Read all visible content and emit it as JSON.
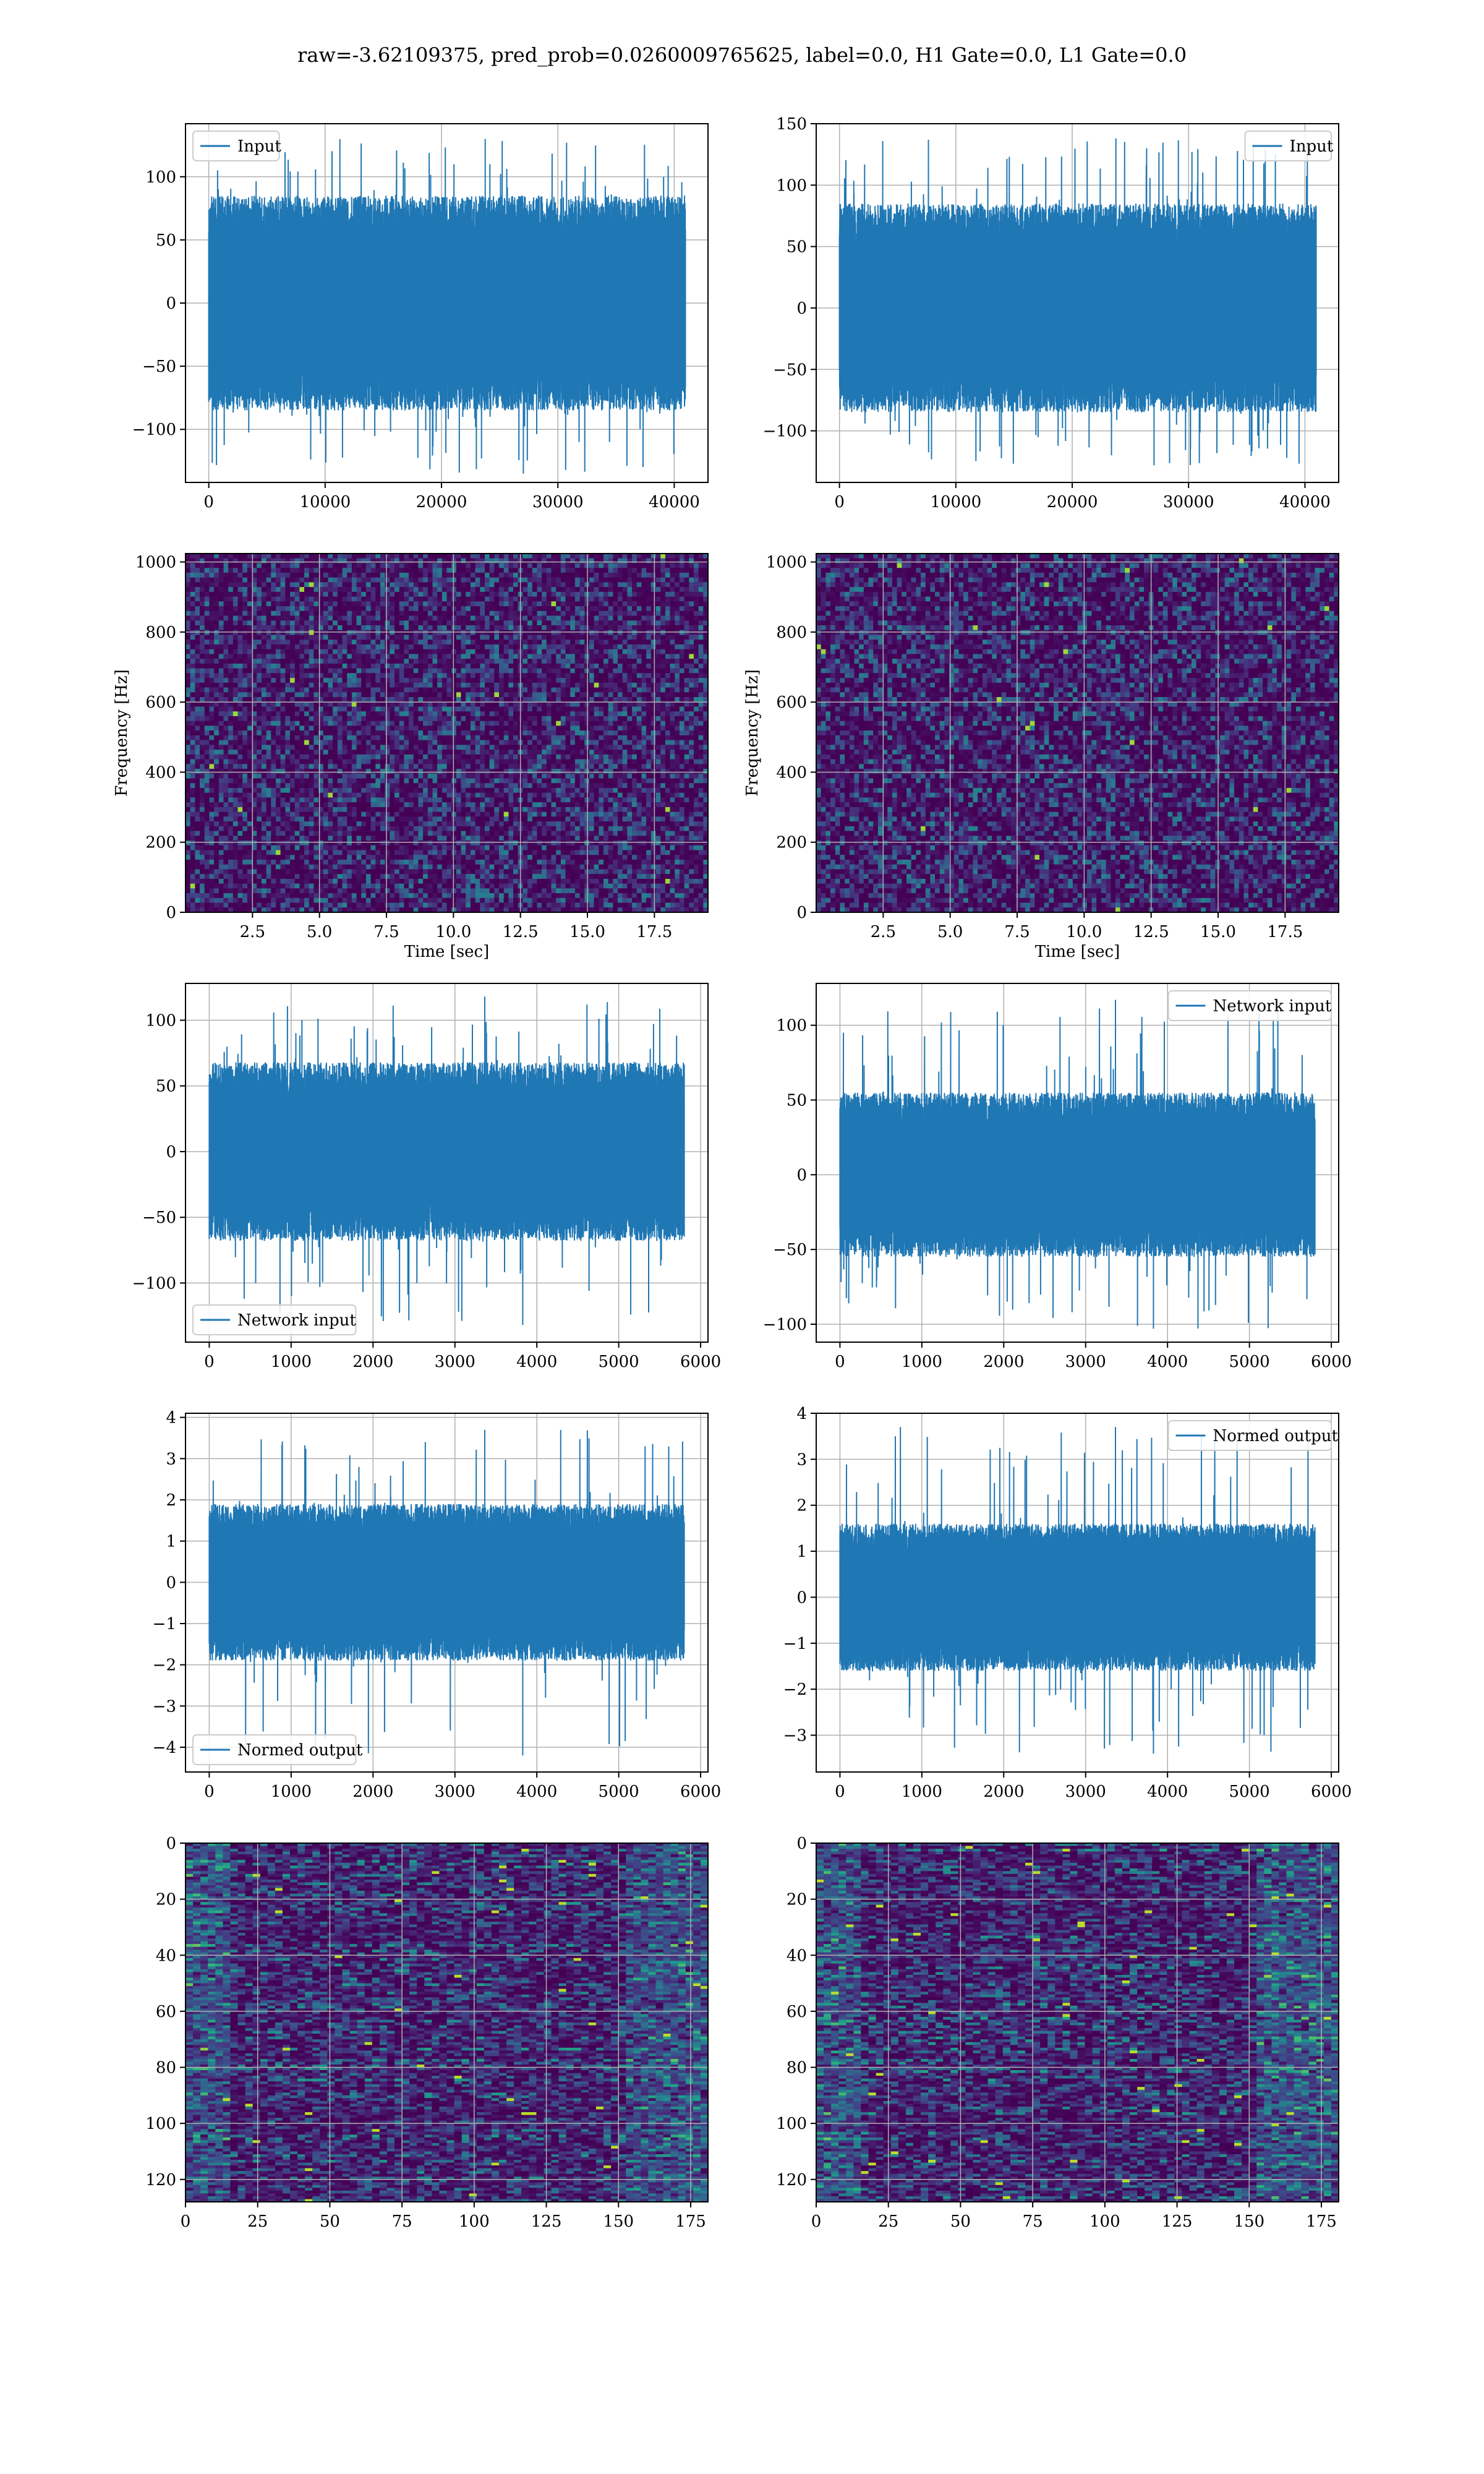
{
  "figure": {
    "title": "raw=-3.62109375, pred_prob=0.0260009765625, label=0.0, H1 Gate=0.0, L1 Gate=0.0"
  },
  "colors": {
    "line": "#1f77b4",
    "grid": "#b0b0b0",
    "viridis_low": "#440154",
    "viridis_high": "#fde725"
  },
  "chart_data": [
    {
      "id": "h1-input",
      "type": "line",
      "title": "",
      "xlabel": "",
      "ylabel": "",
      "xlim": [
        -2000,
        42900
      ],
      "ylim": [
        -142,
        142
      ],
      "xticks": [
        0,
        10000,
        20000,
        30000,
        40000
      ],
      "yticks": [
        -100,
        -50,
        0,
        50,
        100
      ],
      "grid": true,
      "legend": "upper left",
      "series": [
        {
          "name": "Input",
          "n": 40960,
          "band": [
            -85,
            85
          ],
          "extremes": [
            -135,
            130
          ]
        }
      ]
    },
    {
      "id": "l1-input",
      "type": "line",
      "title": "",
      "xlabel": "",
      "ylabel": "",
      "xlim": [
        -2000,
        42900
      ],
      "ylim": [
        -142,
        150
      ],
      "xticks": [
        0,
        10000,
        20000,
        30000,
        40000
      ],
      "yticks": [
        -100,
        -50,
        0,
        50,
        100,
        150
      ],
      "grid": true,
      "legend": "upper right",
      "series": [
        {
          "name": "Input",
          "n": 40960,
          "band": [
            -85,
            85
          ],
          "extremes": [
            -128,
            138
          ]
        }
      ]
    },
    {
      "id": "h1-spectrogram",
      "type": "heatmap",
      "title": "",
      "xlabel": "Time [sec]",
      "ylabel": "Frequency [Hz]",
      "xlim": [
        0,
        19.5
      ],
      "ylim": [
        0,
        1024
      ],
      "xticks": [
        2.5,
        5.0,
        7.5,
        10.0,
        12.5,
        15.0,
        17.5
      ],
      "yticks": [
        0,
        200,
        400,
        600,
        800,
        1000
      ],
      "grid": true,
      "colormap": "viridis"
    },
    {
      "id": "l1-spectrogram",
      "type": "heatmap",
      "title": "",
      "xlabel": "Time [sec]",
      "ylabel": "Frequency [Hz]",
      "xlim": [
        0,
        19.5
      ],
      "ylim": [
        0,
        1024
      ],
      "xticks": [
        2.5,
        5.0,
        7.5,
        10.0,
        12.5,
        15.0,
        17.5
      ],
      "yticks": [
        0,
        200,
        400,
        600,
        800,
        1000
      ],
      "grid": true,
      "colormap": "viridis"
    },
    {
      "id": "h1-network-input",
      "type": "line",
      "title": "",
      "xlabel": "",
      "ylabel": "",
      "xlim": [
        -290,
        6090
      ],
      "ylim": [
        -145,
        128
      ],
      "xticks": [
        0,
        1000,
        2000,
        3000,
        4000,
        5000,
        6000
      ],
      "yticks": [
        -100,
        -50,
        0,
        50,
        100
      ],
      "grid": true,
      "legend": "lower left",
      "series": [
        {
          "name": "Network input",
          "n": 5800,
          "band": [
            -68,
            68
          ],
          "extremes": [
            -132,
            118
          ]
        }
      ]
    },
    {
      "id": "l1-network-input",
      "type": "line",
      "title": "",
      "xlabel": "",
      "ylabel": "",
      "xlim": [
        -290,
        6090
      ],
      "ylim": [
        -112,
        128
      ],
      "xticks": [
        0,
        1000,
        2000,
        3000,
        4000,
        5000,
        6000
      ],
      "yticks": [
        -100,
        -50,
        0,
        50,
        100
      ],
      "grid": true,
      "legend": "upper right",
      "series": [
        {
          "name": "Network input",
          "n": 5800,
          "band": [
            -55,
            55
          ],
          "extremes": [
            -103,
            117
          ]
        }
      ]
    },
    {
      "id": "h1-normed-output",
      "type": "line",
      "title": "",
      "xlabel": "",
      "ylabel": "",
      "xlim": [
        -290,
        6090
      ],
      "ylim": [
        -4.6,
        4.1
      ],
      "xticks": [
        0,
        1000,
        2000,
        3000,
        4000,
        5000,
        6000
      ],
      "yticks": [
        -4,
        -3,
        -2,
        -1,
        0,
        1,
        2,
        3,
        4
      ],
      "grid": true,
      "legend": "lower left",
      "series": [
        {
          "name": "Normed output",
          "n": 5800,
          "band": [
            -1.9,
            1.9
          ],
          "extremes": [
            -4.2,
            3.7
          ]
        }
      ]
    },
    {
      "id": "l1-normed-output",
      "type": "line",
      "title": "",
      "xlabel": "",
      "ylabel": "",
      "xlim": [
        -290,
        6090
      ],
      "ylim": [
        -3.8,
        4.0
      ],
      "xticks": [
        0,
        1000,
        2000,
        3000,
        4000,
        5000,
        6000
      ],
      "yticks": [
        -3,
        -2,
        -1,
        0,
        1,
        2,
        3,
        4
      ],
      "grid": true,
      "legend": "upper right",
      "series": [
        {
          "name": "Normed output",
          "n": 5800,
          "band": [
            -1.6,
            1.6
          ],
          "extremes": [
            -3.4,
            3.7
          ]
        }
      ]
    },
    {
      "id": "h1-feature-map",
      "type": "heatmap",
      "title": "",
      "xlabel": "",
      "ylabel": "",
      "xlim": [
        0,
        181
      ],
      "ylim": [
        128,
        0
      ],
      "xticks": [
        0,
        25,
        50,
        75,
        100,
        125,
        150,
        175
      ],
      "yticks": [
        0,
        20,
        40,
        60,
        80,
        100,
        120
      ],
      "grid": true,
      "colormap": "viridis"
    },
    {
      "id": "l1-feature-map",
      "type": "heatmap",
      "title": "",
      "xlabel": "",
      "ylabel": "",
      "xlim": [
        0,
        181
      ],
      "ylim": [
        128,
        0
      ],
      "xticks": [
        0,
        25,
        50,
        75,
        100,
        125,
        150,
        175
      ],
      "yticks": [
        0,
        20,
        40,
        60,
        80,
        100,
        120
      ],
      "grid": true,
      "colormap": "viridis"
    }
  ]
}
